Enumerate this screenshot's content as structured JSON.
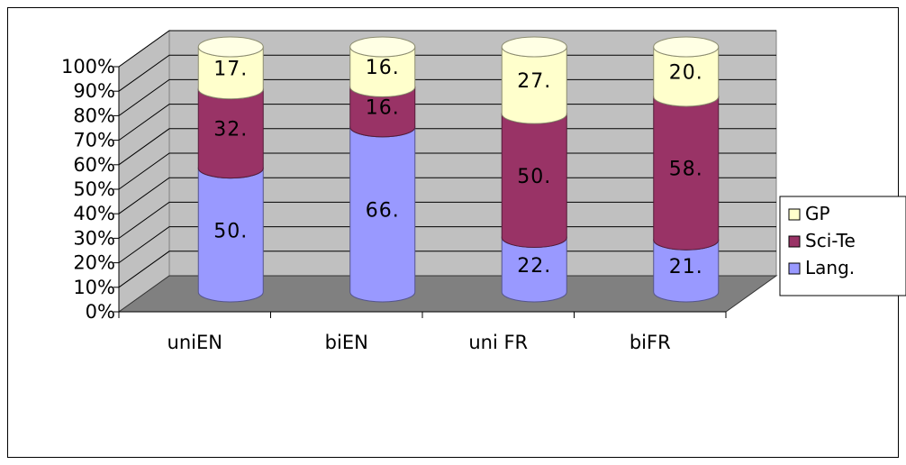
{
  "chart_data": {
    "type": "bar",
    "stacked": true,
    "percent_stacked": true,
    "three_d": true,
    "categories": [
      "uniEN",
      "biEN",
      "uni FR",
      "biFR"
    ],
    "series": [
      {
        "name": "Lang.",
        "values": [
          50,
          66,
          22,
          21
        ],
        "labels": [
          "50.",
          "66.",
          "22.",
          "21."
        ],
        "color": "#9999ff"
      },
      {
        "name": "Sci-Te",
        "values": [
          32,
          16,
          50,
          58
        ],
        "labels": [
          "32.",
          "16.",
          "50.",
          "58."
        ],
        "color": "#993366"
      },
      {
        "name": "GP",
        "values": [
          17,
          16,
          27,
          20
        ],
        "labels": [
          "17.",
          "16.",
          "27.",
          "20."
        ],
        "color": "#ffffcc"
      }
    ],
    "y_ticks": [
      "0%",
      "10%",
      "20%",
      "30%",
      "40%",
      "50%",
      "60%",
      "70%",
      "80%",
      "90%",
      "100%"
    ],
    "ylim": [
      0,
      100
    ],
    "grid": true,
    "legend_position": "right",
    "legend_order": [
      "GP",
      "Sci-Te",
      "Lang."
    ]
  }
}
